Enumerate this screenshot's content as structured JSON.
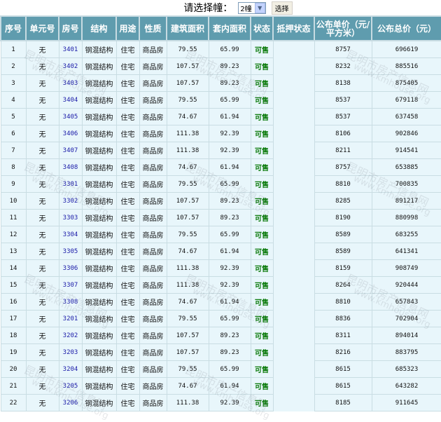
{
  "selector": {
    "prompt": "请选择幢：",
    "selected": "2幢",
    "button": "选择"
  },
  "table": {
    "headers": [
      "序号",
      "单元号",
      "房号",
      "结构",
      "用途",
      "性质",
      "建筑面积",
      "套内面积",
      "状态",
      "抵押状态",
      "公布单价（元/平方米）",
      "公布总价（元）"
    ],
    "rows": [
      [
        "1",
        "无",
        "3401",
        "钢混结构",
        "住宅",
        "商品房",
        "79.55",
        "65.99",
        "可售",
        "",
        "8757",
        "696619"
      ],
      [
        "2",
        "无",
        "3402",
        "钢混结构",
        "住宅",
        "商品房",
        "107.57",
        "89.23",
        "可售",
        "",
        "8232",
        "885516"
      ],
      [
        "3",
        "无",
        "3403",
        "钢混结构",
        "住宅",
        "商品房",
        "107.57",
        "89.23",
        "可售",
        "",
        "8138",
        "875405"
      ],
      [
        "4",
        "无",
        "3404",
        "钢混结构",
        "住宅",
        "商品房",
        "79.55",
        "65.99",
        "可售",
        "",
        "8537",
        "679118"
      ],
      [
        "5",
        "无",
        "3405",
        "钢混结构",
        "住宅",
        "商品房",
        "74.67",
        "61.94",
        "可售",
        "",
        "8537",
        "637458"
      ],
      [
        "6",
        "无",
        "3406",
        "钢混结构",
        "住宅",
        "商品房",
        "111.38",
        "92.39",
        "可售",
        "",
        "8106",
        "902846"
      ],
      [
        "7",
        "无",
        "3407",
        "钢混结构",
        "住宅",
        "商品房",
        "111.38",
        "92.39",
        "可售",
        "",
        "8211",
        "914541"
      ],
      [
        "8",
        "无",
        "3408",
        "钢混结构",
        "住宅",
        "商品房",
        "74.67",
        "61.94",
        "可售",
        "",
        "8757",
        "653885"
      ],
      [
        "9",
        "无",
        "3301",
        "钢混结构",
        "住宅",
        "商品房",
        "79.55",
        "65.99",
        "可售",
        "",
        "8810",
        "700835"
      ],
      [
        "10",
        "无",
        "3302",
        "钢混结构",
        "住宅",
        "商品房",
        "107.57",
        "89.23",
        "可售",
        "",
        "8285",
        "891217"
      ],
      [
        "11",
        "无",
        "3303",
        "钢混结构",
        "住宅",
        "商品房",
        "107.57",
        "89.23",
        "可售",
        "",
        "8190",
        "880998"
      ],
      [
        "12",
        "无",
        "3304",
        "钢混结构",
        "住宅",
        "商品房",
        "79.55",
        "65.99",
        "可售",
        "",
        "8589",
        "683255"
      ],
      [
        "13",
        "无",
        "3305",
        "钢混结构",
        "住宅",
        "商品房",
        "74.67",
        "61.94",
        "可售",
        "",
        "8589",
        "641341"
      ],
      [
        "14",
        "无",
        "3306",
        "钢混结构",
        "住宅",
        "商品房",
        "111.38",
        "92.39",
        "可售",
        "",
        "8159",
        "908749"
      ],
      [
        "15",
        "无",
        "3307",
        "钢混结构",
        "住宅",
        "商品房",
        "111.38",
        "92.39",
        "可售",
        "",
        "8264",
        "920444"
      ],
      [
        "16",
        "无",
        "3308",
        "钢混结构",
        "住宅",
        "商品房",
        "74.67",
        "61.94",
        "可售",
        "",
        "8810",
        "657843"
      ],
      [
        "17",
        "无",
        "3201",
        "钢混结构",
        "住宅",
        "商品房",
        "79.55",
        "65.99",
        "可售",
        "",
        "8836",
        "702904"
      ],
      [
        "18",
        "无",
        "3202",
        "钢混结构",
        "住宅",
        "商品房",
        "107.57",
        "89.23",
        "可售",
        "",
        "8311",
        "894014"
      ],
      [
        "19",
        "无",
        "3203",
        "钢混结构",
        "住宅",
        "商品房",
        "107.57",
        "89.23",
        "可售",
        "",
        "8216",
        "883795"
      ],
      [
        "20",
        "无",
        "3204",
        "钢混结构",
        "住宅",
        "商品房",
        "79.55",
        "65.99",
        "可售",
        "",
        "8615",
        "685323"
      ],
      [
        "21",
        "无",
        "3205",
        "钢混结构",
        "住宅",
        "商品房",
        "74.67",
        "61.94",
        "可售",
        "",
        "8615",
        "643282"
      ],
      [
        "22",
        "无",
        "3206",
        "钢混结构",
        "住宅",
        "商品房",
        "111.38",
        "92.39",
        "可售",
        "",
        "8185",
        "911645"
      ]
    ]
  },
  "watermark": {
    "text1": "昆明市房产信息网",
    "text2": "www.kmhouse.org"
  },
  "colors": {
    "header_bg": "#5f9cae",
    "cell_bg": "#e8f6fb",
    "status": "#0a7a0a",
    "room_link": "#1a1aa8"
  }
}
